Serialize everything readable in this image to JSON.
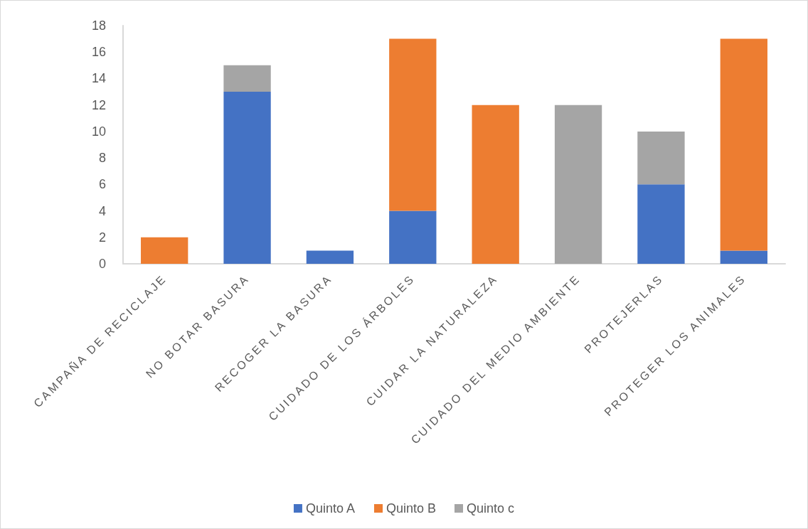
{
  "chart_data": {
    "type": "bar",
    "stacked": true,
    "categories": [
      "CAMPAÑA DE RECICLAJE",
      "NO BOTAR BASURA",
      "RECOGER LA BASURA",
      "CUIDADO DE LOS ÁRBOLES",
      "CUIDAR LA NATURALEZA",
      "CUIDADO DEL MEDIO AMBIENTE",
      "PROTEJERLAS",
      "PROTEGER LOS ANIMALES"
    ],
    "series": [
      {
        "name": "Quinto A",
        "color": "#4472c4",
        "values": [
          null,
          13,
          1,
          4,
          null,
          null,
          6,
          1
        ]
      },
      {
        "name": "Quinto B",
        "color": "#ed7d31",
        "values": [
          2,
          null,
          null,
          13,
          12,
          null,
          null,
          16
        ]
      },
      {
        "name": "Quinto c",
        "color": "#a5a5a5",
        "values": [
          null,
          2,
          null,
          null,
          null,
          12,
          4,
          null
        ]
      }
    ],
    "ylim": [
      0,
      18
    ],
    "yticks": [
      0,
      2,
      4,
      6,
      8,
      10,
      12,
      14,
      16,
      18
    ],
    "grid": false,
    "legend": "bottom"
  }
}
